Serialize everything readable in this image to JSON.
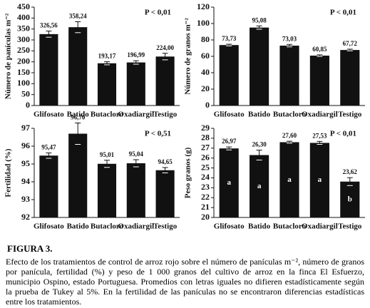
{
  "chart_data": [
    {
      "type": "bar",
      "ylabel": "Número de panículas m⁻²",
      "annotation": "P < 0,01",
      "categories": [
        "Glifosato",
        "Batido",
        "Butacloro",
        "Oxadiargil",
        "Testigo"
      ],
      "values": [
        326.56,
        358.24,
        193.17,
        196.99,
        224.0
      ],
      "value_labels": [
        "326,56",
        "358,24",
        "193,17",
        "196,99",
        "224,00"
      ],
      "errors": [
        14,
        25,
        7,
        8,
        15
      ],
      "color": "#111111",
      "ylim": [
        0,
        450
      ],
      "yticks": [
        0,
        50,
        100,
        150,
        200,
        250,
        300,
        350,
        400,
        450
      ]
    },
    {
      "type": "bar",
      "ylabel": "Número de granos m⁻²",
      "annotation": "P < 0,01",
      "categories": [
        "Glifosato",
        "Batido",
        "Butacloro",
        "Oxadiargil",
        "Testigo"
      ],
      "values": [
        73.73,
        95.08,
        73.03,
        60.85,
        67.72
      ],
      "value_labels": [
        "73,73",
        "95,08",
        "73,03",
        "60,85",
        "67,72"
      ],
      "errors": [
        1,
        2,
        1.5,
        1,
        1
      ],
      "color": "#111111",
      "ylim": [
        0,
        120
      ],
      "yticks": [
        0,
        20,
        40,
        60,
        80,
        100,
        120
      ]
    },
    {
      "type": "bar",
      "ylabel": "Fertilidad (%)",
      "annotation": "P < 0,51",
      "categories": [
        "Glifosato",
        "Batido",
        "Butacloro",
        "Oxadiargil",
        "Testigo"
      ],
      "values": [
        95.47,
        96.7,
        95.01,
        95.04,
        94.65
      ],
      "value_labels": [
        "95,47",
        "96,70",
        "95,01",
        "95,04",
        "94,65"
      ],
      "errors": [
        0.15,
        0.6,
        0.2,
        0.2,
        0.15
      ],
      "color": "#111111",
      "ylim": [
        92,
        97
      ],
      "yticks": [
        92,
        93,
        94,
        95,
        96,
        97
      ]
    },
    {
      "type": "bar",
      "ylabel": "Peso granos (g)",
      "annotation": "P < 0,01",
      "categories": [
        "Glifosato",
        "Batido",
        "Butacloro",
        "Oxadiargil",
        "Testigo"
      ],
      "values": [
        26.97,
        26.3,
        27.6,
        27.53,
        23.62
      ],
      "value_labels": [
        "26,97",
        "26,30",
        "27,60",
        "27,53",
        "23,62"
      ],
      "letters": [
        "a",
        "a",
        "a",
        "a",
        "b"
      ],
      "errors": [
        0.15,
        0.5,
        0.1,
        0.15,
        0.4
      ],
      "color": "#111111",
      "ylim": [
        20,
        29
      ],
      "yticks": [
        20,
        21,
        22,
        23,
        24,
        25,
        26,
        27,
        28,
        29
      ]
    }
  ],
  "figure_label": "FIGURA 3.",
  "caption": "Efecto de los tratamientos de control de arroz rojo sobre el número de panículas m⁻², número de granos por panícula, fertilidad (%) y peso de 1 000 granos del cultivo de arroz en la finca El Esfuerzo, municipio Ospino, estado Portuguesa. Promedios con letras iguales no difieren estadísticamente según la prueba de Tukey al 5%. En la fertilidad de las panículas no se encontraron diferencias estadísticas entre los tratamientos."
}
